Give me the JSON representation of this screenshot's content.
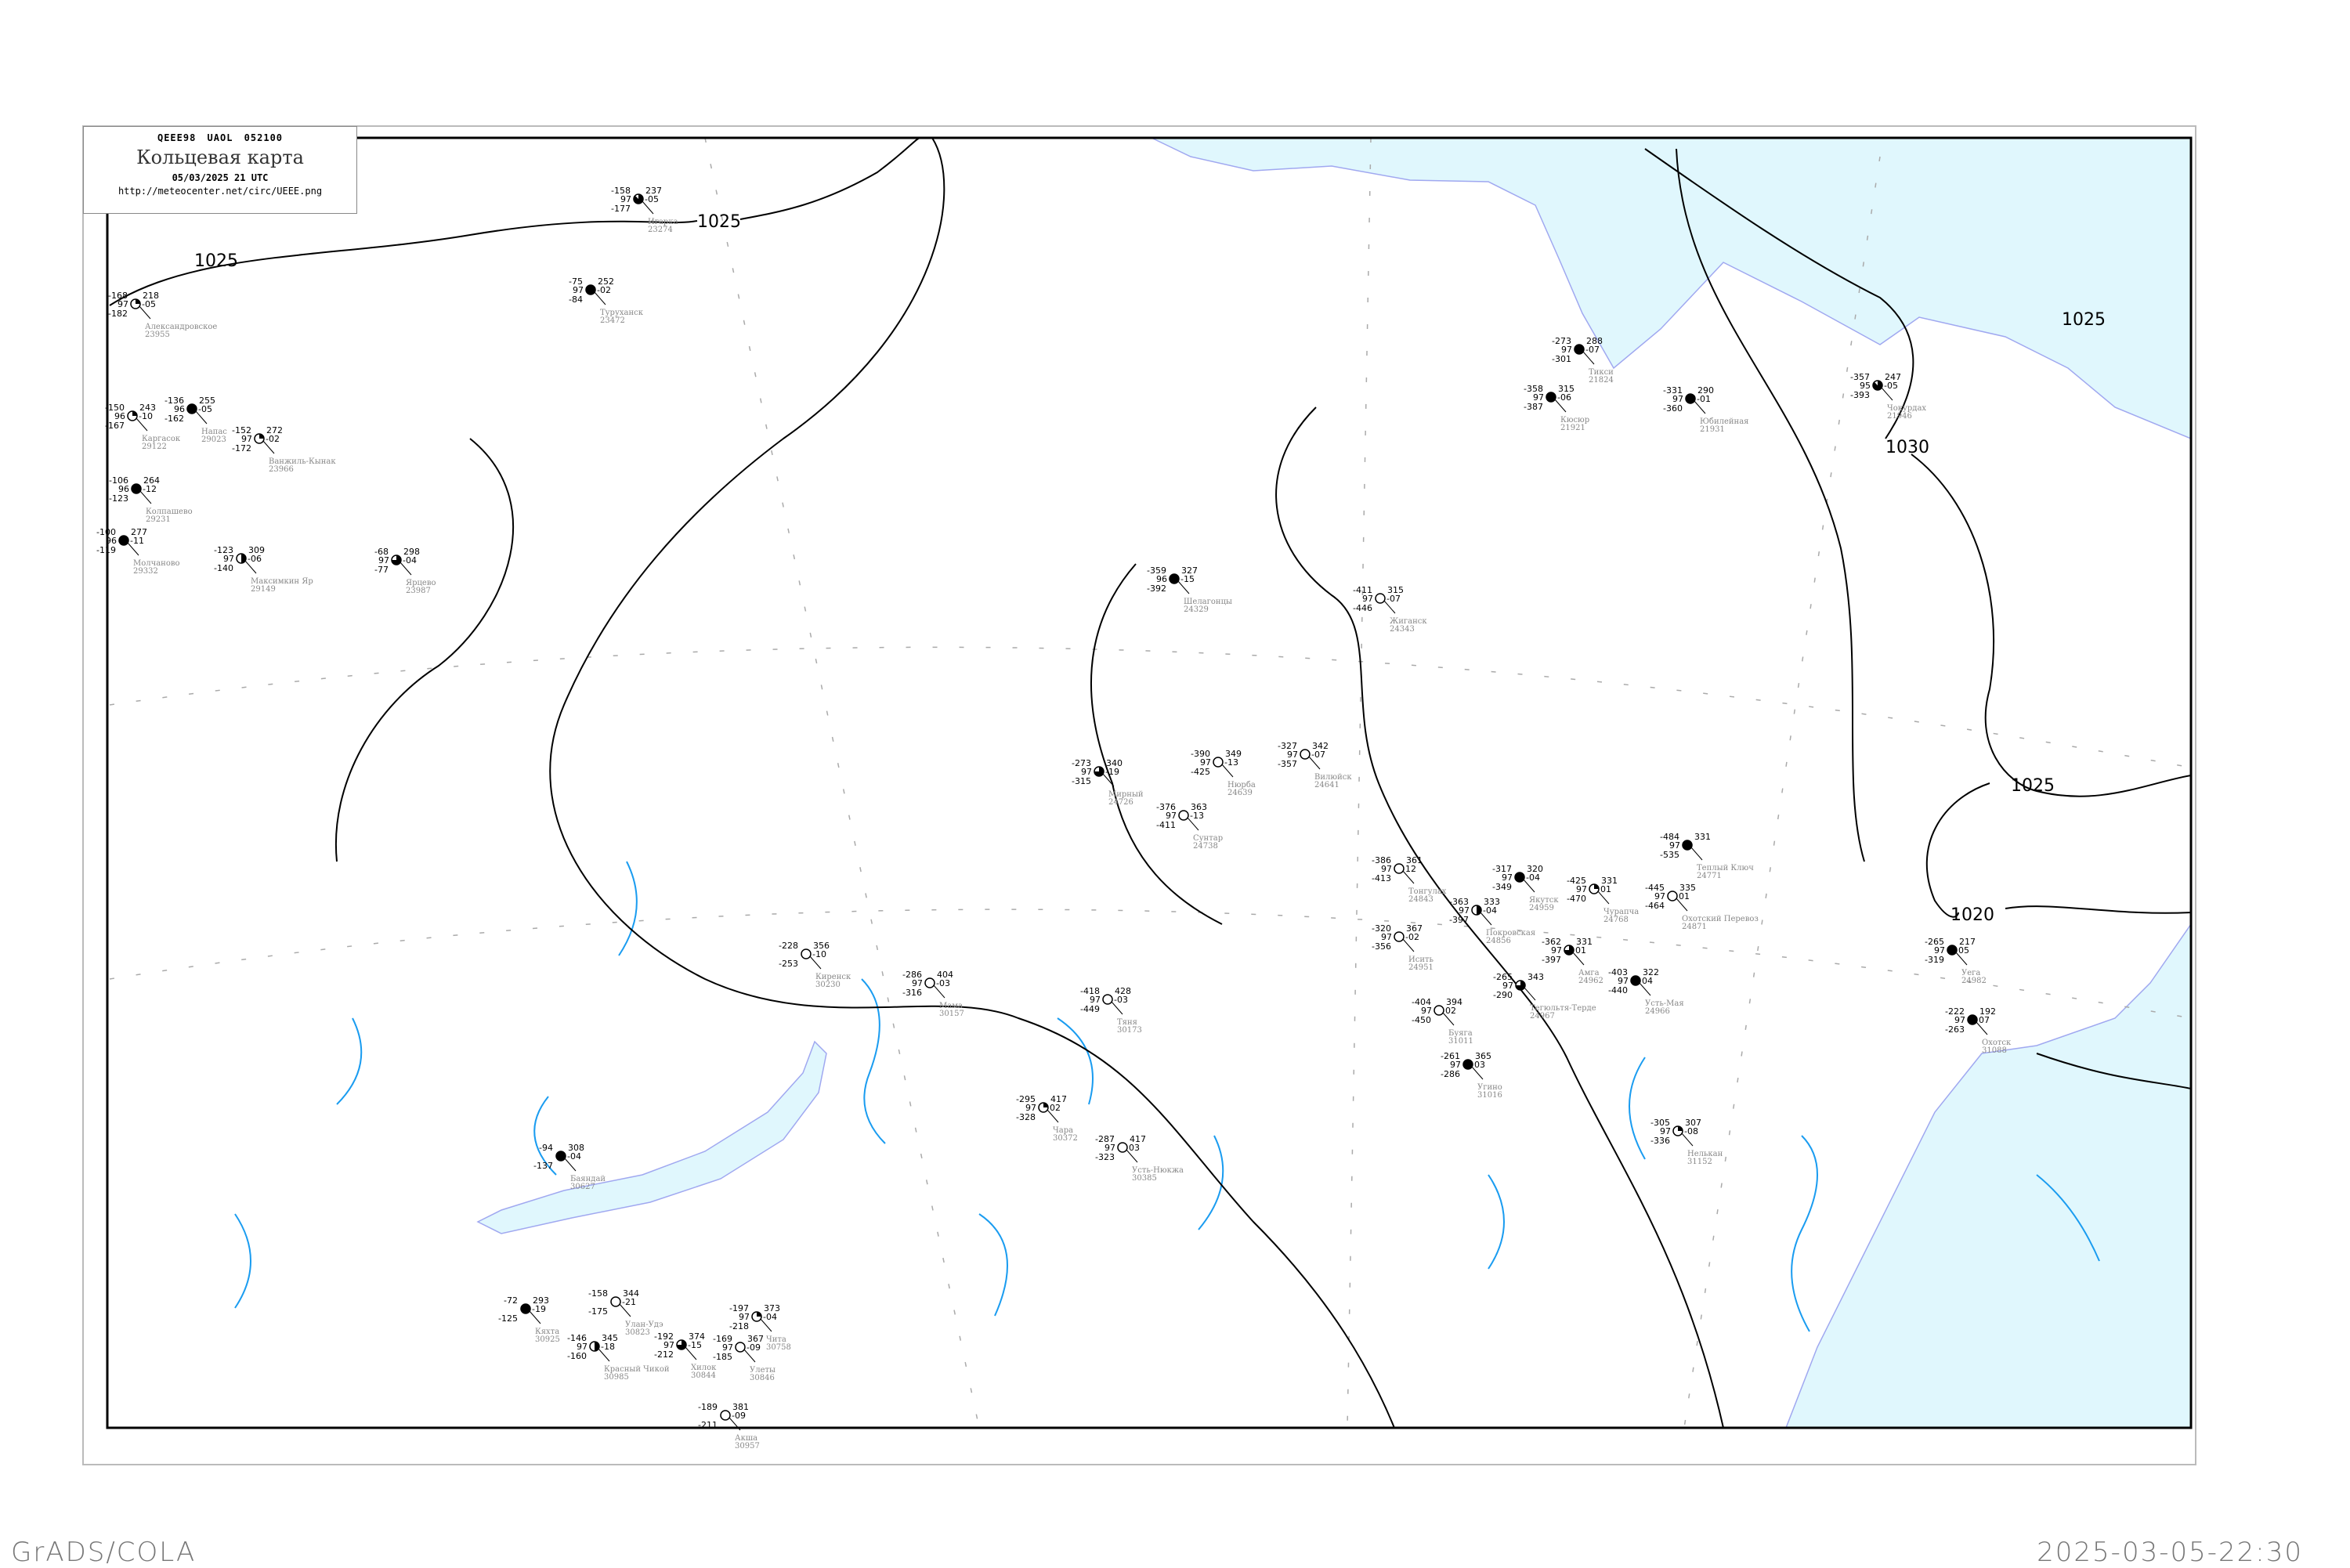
{
  "header": {
    "bulletin_code": "QEEE98  UAOL  052100",
    "title": "Кольцевая карта",
    "datetime": "05/03/2025 21 UTC",
    "url": "http://meteocenter.net/circ/UEEE.png"
  },
  "footer": {
    "software": "GrADS/COLA",
    "generated": "2025-03-05-22:30"
  },
  "colors": {
    "sea": "#e0f7fd",
    "isobar": "#000000",
    "isallobar": "#1a9cf0",
    "river": "#a0a8f0",
    "station_name": "#888888",
    "snow_marker": "#3399ff",
    "marker_yellow": "#ffff99"
  },
  "isobar_labels": [
    "1025",
    "1025",
    "1025",
    "1030",
    "1025",
    "1020"
  ],
  "stations": [
    {
      "name": "Игарка",
      "index": "23274",
      "temp": "-158",
      "pressure": "237",
      "dew": "-177",
      "vis": "97",
      "tend": "-05",
      "cover": 0.875
    },
    {
      "name": "Туруханск",
      "index": "23472",
      "temp": "-75",
      "pressure": "252",
      "dew": "-84",
      "vis": "97",
      "tend": "-02",
      "cover": 1
    },
    {
      "name": "Тикси",
      "index": "21824",
      "temp": "-273",
      "pressure": "288",
      "dew": "-301",
      "vis": "97",
      "tend": "-07",
      "cover": 1
    },
    {
      "name": "Кюсюр",
      "index": "21921",
      "temp": "-358",
      "pressure": "315",
      "dew": "-387",
      "vis": "97",
      "tend": "-06",
      "cover": 1
    },
    {
      "name": "Юбилейная",
      "index": "21931",
      "temp": "-331",
      "pressure": "290",
      "dew": "-360",
      "vis": "97",
      "tend": "-01",
      "cover": 1
    },
    {
      "name": "Чокурдах",
      "index": "21946",
      "temp": "-357",
      "pressure": "247",
      "dew": "-393",
      "vis": "95",
      "tend": "-05",
      "cover": 0.875
    },
    {
      "name": "Александровское",
      "index": "23955",
      "temp": "-168",
      "pressure": "218",
      "dew": "-182",
      "vis": "97",
      "tend": "-05",
      "cover": 0.25
    },
    {
      "name": "Каргасок",
      "index": "29122",
      "temp": "-150",
      "pressure": "243",
      "dew": "-167",
      "vis": "96",
      "tend": "-10",
      "cover": 0.25
    },
    {
      "name": "Напас",
      "index": "29023",
      "temp": "-136",
      "pressure": "255",
      "dew": "-162",
      "vis": "96",
      "tend": "-05",
      "cover": 1
    },
    {
      "name": "Ванжиль-Кынак",
      "index": "23966",
      "temp": "-152",
      "pressure": "272",
      "dew": "-172",
      "vis": "97",
      "tend": "-02",
      "cover": 0.25
    },
    {
      "name": "Колпашево",
      "index": "29231",
      "temp": "-106",
      "pressure": "264",
      "dew": "-123",
      "vis": "96",
      "tend": "-12",
      "cover": 1
    },
    {
      "name": "Молчаново",
      "index": "29332",
      "temp": "-100",
      "pressure": "277",
      "dew": "-119",
      "vis": "96",
      "tend": "-11",
      "cover": 1
    },
    {
      "name": "Максимкин Яр",
      "index": "29149",
      "temp": "-123",
      "pressure": "309",
      "dew": "-140",
      "vis": "97",
      "tend": "-06",
      "cover": 0.5
    },
    {
      "name": "Ярцево",
      "index": "23987",
      "temp": "-68",
      "pressure": "298",
      "dew": "-77",
      "vis": "97",
      "tend": "-04",
      "cover": 0.75
    },
    {
      "name": "Шелагонцы",
      "index": "24329",
      "temp": "-359",
      "pressure": "327",
      "dew": "-392",
      "vis": "96",
      "tend": "-15",
      "cover": 1
    },
    {
      "name": "Жиганск",
      "index": "24343",
      "temp": "-411",
      "pressure": "315",
      "dew": "-446",
      "vis": "97",
      "tend": "-07",
      "cover": 0
    },
    {
      "name": "Мирный",
      "index": "24726",
      "temp": "-273",
      "pressure": "340",
      "dew": "-315",
      "vis": "97",
      "tend": "-19",
      "cover": 0.75
    },
    {
      "name": "Нюрба",
      "index": "24639",
      "temp": "-390",
      "pressure": "349",
      "dew": "-425",
      "vis": "97",
      "tend": "-13",
      "cover": 0
    },
    {
      "name": "Вилюйск",
      "index": "24641",
      "temp": "-327",
      "pressure": "342",
      "dew": "-357",
      "vis": "97",
      "tend": "-07",
      "cover": 0
    },
    {
      "name": "Сунтар",
      "index": "24738",
      "temp": "-376",
      "pressure": "363",
      "dew": "-411",
      "vis": "97",
      "tend": "-13",
      "cover": 0
    },
    {
      "name": "Якутск",
      "index": "24959",
      "temp": "-317",
      "pressure": "320",
      "dew": "-349",
      "vis": "97",
      "tend": "-04",
      "cover": 1
    },
    {
      "name": "Покровская",
      "index": "24856",
      "temp": "-363",
      "pressure": "333",
      "dew": "-397",
      "vis": "97",
      "tend": "-04",
      "cover": 0.5
    },
    {
      "name": "Тонгулах",
      "index": "24843",
      "temp": "-386",
      "pressure": "361",
      "dew": "-413",
      "vis": "97",
      "tend": "12",
      "cover": 0
    },
    {
      "name": "Исить",
      "index": "24951",
      "temp": "-320",
      "pressure": "367",
      "dew": "-356",
      "vis": "97",
      "tend": "-02",
      "cover": 0
    },
    {
      "name": "Чурапча",
      "index": "24768",
      "temp": "-425",
      "pressure": "331",
      "dew": "-470",
      "vis": "97",
      "tend": "01",
      "cover": 0.25
    },
    {
      "name": "Охотский Перевоз",
      "index": "24871",
      "temp": "-445",
      "pressure": "335",
      "dew": "-464",
      "vis": "97",
      "tend": "01",
      "cover": 0
    },
    {
      "name": "Амга",
      "index": "24962",
      "temp": "-362",
      "pressure": "331",
      "dew": "-397",
      "vis": "97",
      "tend": "01",
      "cover": 0.75
    },
    {
      "name": "Теплый Ключ",
      "index": "24771",
      "temp": "-484",
      "pressure": "331",
      "dew": "-535",
      "vis": "97",
      "tend": "",
      "cover": 1
    },
    {
      "name": "Усть-Мая",
      "index": "24966",
      "temp": "-403",
      "pressure": "322",
      "dew": "-440",
      "vis": "97",
      "tend": "04",
      "cover": 1
    },
    {
      "name": "Тегюльтя-Терде",
      "index": "24967",
      "temp": "-265",
      "pressure": "343",
      "dew": "-290",
      "vis": "97",
      "tend": "",
      "cover": 0.75
    },
    {
      "name": "Угино",
      "index": "31016",
      "temp": "-261",
      "pressure": "365",
      "dew": "-286",
      "vis": "97",
      "tend": "03",
      "cover": 1
    },
    {
      "name": "Буяга",
      "index": "31011",
      "temp": "-404",
      "pressure": "394",
      "dew": "-450",
      "vis": "97",
      "tend": "02",
      "cover": 0
    },
    {
      "name": "Нелькан",
      "index": "31152",
      "temp": "-305",
      "pressure": "307",
      "dew": "-336",
      "vis": "97",
      "tend": "-08",
      "cover": 0.25
    },
    {
      "name": "Уега",
      "index": "24982",
      "temp": "-265",
      "pressure": "217",
      "dew": "-319",
      "vis": "97",
      "tend": "05",
      "cover": 1
    },
    {
      "name": "Охотск",
      "index": "31088",
      "temp": "-222",
      "pressure": "192",
      "dew": "-263",
      "vis": "97",
      "tend": "07",
      "cover": 1
    },
    {
      "name": "Киренск",
      "index": "30230",
      "temp": "-228",
      "pressure": "356",
      "dew": "-253",
      "vis": "",
      "tend": "-10",
      "cover": 0
    },
    {
      "name": "Мама",
      "index": "30157",
      "temp": "-286",
      "pressure": "404",
      "dew": "-316",
      "vis": "97",
      "tend": "-03",
      "cover": 0
    },
    {
      "name": "Тяня",
      "index": "30173",
      "temp": "-418",
      "pressure": "428",
      "dew": "-449",
      "vis": "97",
      "tend": "-03",
      "cover": 0
    },
    {
      "name": "Чара",
      "index": "30372",
      "temp": "-295",
      "pressure": "417",
      "dew": "-328",
      "vis": "97",
      "tend": "02",
      "cover": 0.25
    },
    {
      "name": "Усть-Нюкжа",
      "index": "30385",
      "temp": "-287",
      "pressure": "417",
      "dew": "-323",
      "vis": "97",
      "tend": "03",
      "cover": 0
    },
    {
      "name": "Баяндай",
      "index": "30627",
      "temp": "-94",
      "pressure": "308",
      "dew": "-137",
      "vis": "",
      "tend": "-04",
      "cover": 1
    },
    {
      "name": "Улан-Удэ",
      "index": "30823",
      "temp": "-158",
      "pressure": "344",
      "dew": "-175",
      "vis": "",
      "tend": "-21",
      "cover": 0
    },
    {
      "name": "Чита",
      "index": "30758",
      "temp": "-197",
      "pressure": "373",
      "dew": "-218",
      "vis": "97",
      "tend": "-04",
      "cover": 0.25
    },
    {
      "name": "Кяхта",
      "index": "30925",
      "temp": "-72",
      "pressure": "293",
      "dew": "-125",
      "vis": "",
      "tend": "-19",
      "cover": 1
    },
    {
      "name": "Хилок",
      "index": "30844",
      "temp": "-192",
      "pressure": "374",
      "dew": "-212",
      "vis": "97",
      "tend": "-15",
      "cover": 0.75
    },
    {
      "name": "Улеты",
      "index": "30846",
      "temp": "-169",
      "pressure": "367",
      "dew": "-185",
      "vis": "97",
      "tend": "-09",
      "cover": 0
    },
    {
      "name": "Акша",
      "index": "30957",
      "temp": "-189",
      "pressure": "381",
      "dew": "-211",
      "vis": "",
      "tend": "-09",
      "cover": 0
    },
    {
      "name": "Красный Чикой",
      "index": "30985",
      "temp": "-146",
      "pressure": "345",
      "dew": "-160",
      "vis": "97",
      "tend": "-18",
      "cover": 0.5
    }
  ]
}
